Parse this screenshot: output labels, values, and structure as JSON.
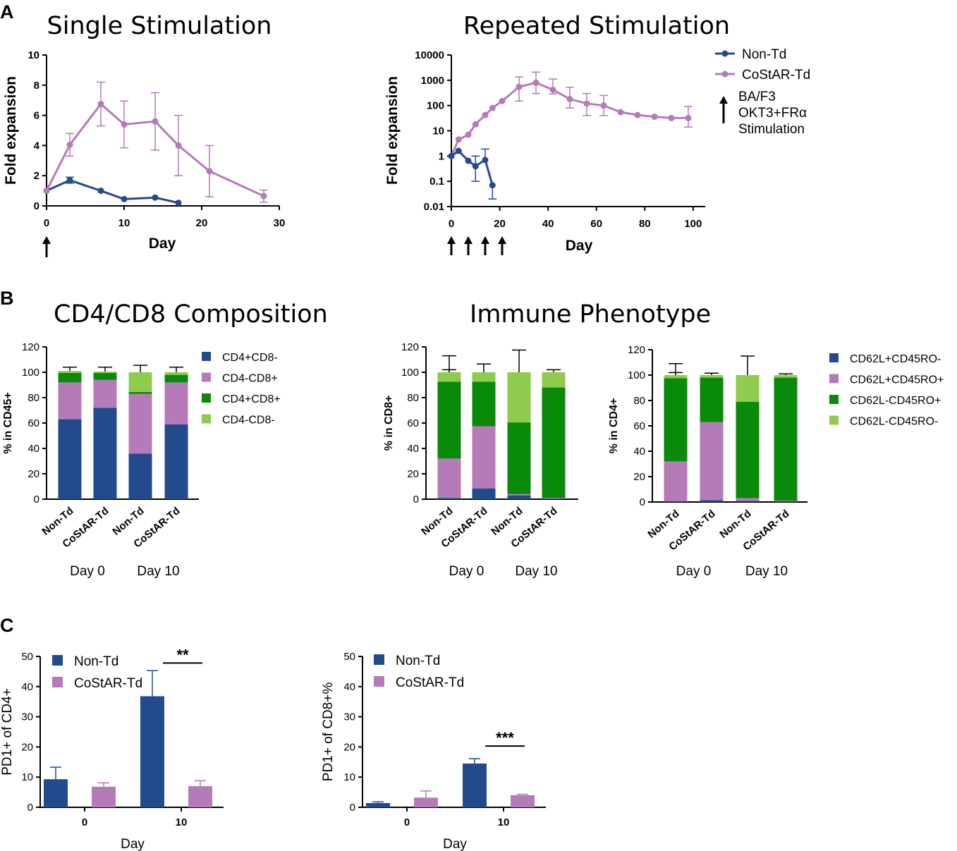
{
  "colors": {
    "navy": "#234a8c",
    "pink": "#b57ab8",
    "dgreen": "#0a8a0a",
    "lgreen": "#8fcb4c",
    "axis": "#000000"
  },
  "panel_labels": {
    "A": "A",
    "B": "B",
    "C": "C"
  },
  "chart_data": [
    {
      "id": "single",
      "type": "line",
      "title": "Single Stimulation",
      "xlabel": "Day",
      "ylabel": "Fold expansion",
      "xlim": [
        0,
        30
      ],
      "ylim": [
        0,
        10
      ],
      "xticks": [
        0,
        10,
        20,
        30
      ],
      "yticks": [
        0,
        2,
        4,
        6,
        8,
        10
      ],
      "stim_days": [
        0
      ],
      "series": [
        {
          "name": "Non-Td",
          "color": "#234a8c",
          "x": [
            0,
            3,
            7,
            10,
            14,
            17
          ],
          "y": [
            1,
            1.7,
            1.0,
            0.45,
            0.55,
            0.2
          ],
          "err": [
            0,
            0.2,
            0,
            0,
            0,
            0
          ]
        },
        {
          "name": "CoStAR-Td",
          "color": "#b57ab8",
          "x": [
            0,
            3,
            7,
            10,
            14,
            17,
            21,
            28
          ],
          "y": [
            1,
            4.05,
            6.75,
            5.4,
            5.6,
            4.0,
            2.3,
            0.65
          ],
          "err": [
            0,
            0.75,
            1.45,
            1.55,
            1.9,
            2.0,
            1.7,
            0.4
          ]
        }
      ]
    },
    {
      "id": "repeated",
      "type": "line",
      "title": "Repeated Stimulation",
      "xlabel": "Day",
      "ylabel": "Fold expansion",
      "yscale": "log",
      "xlim": [
        0,
        105
      ],
      "ylim": [
        0.01,
        10000
      ],
      "xticks": [
        0,
        20,
        40,
        60,
        80,
        100
      ],
      "yticks": [
        0.01,
        0.1,
        1,
        10,
        100,
        1000,
        10000
      ],
      "ytick_labels": [
        "0.01",
        "0.1",
        "1",
        "10",
        "100",
        "1000",
        "10000"
      ],
      "stim_days": [
        0,
        7,
        14,
        21
      ],
      "series": [
        {
          "name": "Non-Td",
          "color": "#234a8c",
          "x": [
            0,
            3,
            7,
            10,
            14,
            17
          ],
          "y": [
            1,
            1.6,
            0.65,
            0.4,
            0.7,
            0.07
          ],
          "err_hi": [
            0,
            0,
            0,
            0.6,
            1.2,
            0
          ],
          "err_lo": [
            0,
            0,
            0,
            0.3,
            0,
            0.05
          ]
        },
        {
          "name": "CoStAR-Td",
          "color": "#b57ab8",
          "x": [
            0,
            3,
            7,
            10,
            14,
            17,
            21,
            28,
            35,
            42,
            49,
            56,
            63,
            70,
            77,
            84,
            91,
            98
          ],
          "y": [
            1,
            4.5,
            7,
            18,
            42,
            80,
            150,
            550,
            800,
            420,
            180,
            120,
            100,
            55,
            42,
            36,
            32,
            32
          ],
          "err_hi": [
            0,
            0,
            0,
            0,
            0,
            0,
            0,
            800,
            1300,
            700,
            350,
            180,
            150,
            0,
            0,
            0,
            0,
            60
          ],
          "err_lo": [
            0,
            0,
            0,
            0,
            0,
            0,
            0,
            400,
            500,
            130,
            100,
            80,
            60,
            0,
            0,
            0,
            0,
            18
          ]
        }
      ],
      "legend": {
        "entries": [
          "Non-Td",
          "CoStAR-Td"
        ],
        "stim_label_lines": [
          "BA/F3",
          "OKT3+FRα",
          "Stimulation"
        ]
      }
    },
    {
      "id": "cd4cd8",
      "type": "bar",
      "stacked": true,
      "title": "CD4/CD8 Composition",
      "ylabel": "% in CD45+",
      "ylim": [
        0,
        120
      ],
      "yticks": [
        0,
        20,
        40,
        60,
        80,
        100,
        120
      ],
      "categories": [
        "Non-Td",
        "CoStAR-Td",
        "Non-Td",
        "CoStAR-Td"
      ],
      "groups": [
        "Day 0",
        "Day 10"
      ],
      "series": [
        {
          "name": "CD4+CD8-",
          "color": "#234a8c",
          "values": [
            63,
            72,
            36,
            59
          ],
          "err": [
            5.5,
            7,
            6,
            15.5
          ]
        },
        {
          "name": "CD4-CD8+",
          "color": "#b57ab8",
          "values": [
            29,
            22,
            47,
            33
          ],
          "err": [
            0,
            0,
            0,
            0
          ]
        },
        {
          "name": "CD4+CD8+",
          "color": "#0a8a0a",
          "values": [
            7.5,
            5.5,
            1.5,
            6
          ],
          "err": [
            0,
            0,
            0,
            0
          ]
        },
        {
          "name": "CD4-CD8-",
          "color": "#8fcb4c",
          "values": [
            1.5,
            1,
            15.5,
            2
          ],
          "err": [
            3,
            3.5,
            5.5,
            4
          ]
        }
      ],
      "legend": [
        "CD4+CD8-",
        "CD4-CD8+",
        "CD4+CD8+",
        "CD4-CD8-"
      ]
    },
    {
      "id": "cd8pheno",
      "type": "bar",
      "stacked": true,
      "title": "Immune Phenotype",
      "ylabel": "% in CD8+",
      "ylim": [
        0,
        120
      ],
      "yticks": [
        0,
        20,
        40,
        60,
        80,
        100,
        120
      ],
      "categories": [
        "Non-Td",
        "CoStAR-Td",
        "Non-Td",
        "CoStAR-Td"
      ],
      "groups": [
        "Day 0",
        "Day 10"
      ],
      "series": [
        {
          "name": "CD62L+CD45RO-",
          "color": "#234a8c",
          "values": [
            1,
            8.5,
            3,
            0.5
          ],
          "err": [
            0,
            8,
            2,
            0
          ]
        },
        {
          "name": "CD62L+CD45RO+",
          "color": "#b57ab8",
          "values": [
            31,
            49,
            1,
            0.5
          ],
          "err": [
            21,
            15,
            1,
            0
          ]
        },
        {
          "name": "CD62L-CD45RO+",
          "color": "#0a8a0a",
          "values": [
            60.5,
            35,
            56.5,
            87
          ],
          "err": [
            9.5,
            6.5,
            19.5,
            2
          ]
        },
        {
          "name": "CD62L-CD45RO-",
          "color": "#8fcb4c",
          "values": [
            7.5,
            7.5,
            39.5,
            12
          ],
          "err": [
            13,
            6.5,
            17.5,
            2
          ]
        }
      ]
    },
    {
      "id": "cd4pheno",
      "type": "bar",
      "stacked": true,
      "ylabel": "% in CD4+",
      "ylim": [
        0,
        120
      ],
      "yticks": [
        0,
        20,
        40,
        60,
        80,
        100,
        120
      ],
      "categories": [
        "Non-Td",
        "CoStAR-Td",
        "Non-Td",
        "CoStAR-Td"
      ],
      "groups": [
        "Day 0",
        "Day 10"
      ],
      "series": [
        {
          "name": "CD62L+CD45RO-",
          "color": "#234a8c",
          "values": [
            0.5,
            1.5,
            1,
            0.5
          ],
          "err": [
            1,
            2,
            1,
            0
          ]
        },
        {
          "name": "CD62L+CD45RO+",
          "color": "#b57ab8",
          "values": [
            31.5,
            61.5,
            2,
            0.5
          ],
          "err": [
            9.5,
            1.5,
            3,
            0
          ]
        },
        {
          "name": "CD62L-CD45RO+",
          "color": "#0a8a0a",
          "values": [
            65.5,
            35,
            76,
            97
          ],
          "err": [
            4.5,
            0,
            17,
            1
          ]
        },
        {
          "name": "CD62L-CD45RO-",
          "color": "#8fcb4c",
          "values": [
            2.5,
            2,
            21,
            2
          ],
          "err": [
            9,
            1.5,
            15,
            1
          ]
        }
      ],
      "legend": [
        "CD62L+CD45RO-",
        "CD62L+CD45RO+",
        "CD62L-CD45RO+",
        "CD62L-CD45RO-"
      ]
    },
    {
      "id": "pd1cd4",
      "type": "bar",
      "xlabel": "Day",
      "ylabel": "PD1+ of CD4+",
      "ylim": [
        0,
        50
      ],
      "yticks": [
        0,
        10,
        20,
        30,
        40,
        50
      ],
      "categories": [
        "0",
        "10"
      ],
      "series": [
        {
          "name": "Non-Td",
          "color": "#234a8c",
          "values": [
            9.3,
            36.8
          ],
          "err": [
            4,
            8.5
          ]
        },
        {
          "name": "CoStAR-Td",
          "color": "#b57ab8",
          "values": [
            6.8,
            7.0
          ],
          "err": [
            1.3,
            1.8
          ]
        }
      ],
      "significance": {
        "category": "10",
        "label": "**",
        "y": 47.8
      }
    },
    {
      "id": "pd1cd8",
      "type": "bar",
      "xlabel": "Day",
      "ylabel": "PD1+ of CD8+%",
      "ylim": [
        0,
        50
      ],
      "yticks": [
        0,
        10,
        20,
        30,
        40,
        50
      ],
      "categories": [
        "0",
        "10"
      ],
      "series": [
        {
          "name": "Non-Td",
          "color": "#234a8c",
          "values": [
            1.4,
            14.5
          ],
          "err": [
            0.4,
            1.6
          ]
        },
        {
          "name": "CoStAR-Td",
          "color": "#b57ab8",
          "values": [
            3.2,
            4.0
          ],
          "err": [
            2.2,
            0.3
          ]
        }
      ],
      "significance": {
        "category": "10",
        "label": "***",
        "y": 20.3
      }
    }
  ]
}
